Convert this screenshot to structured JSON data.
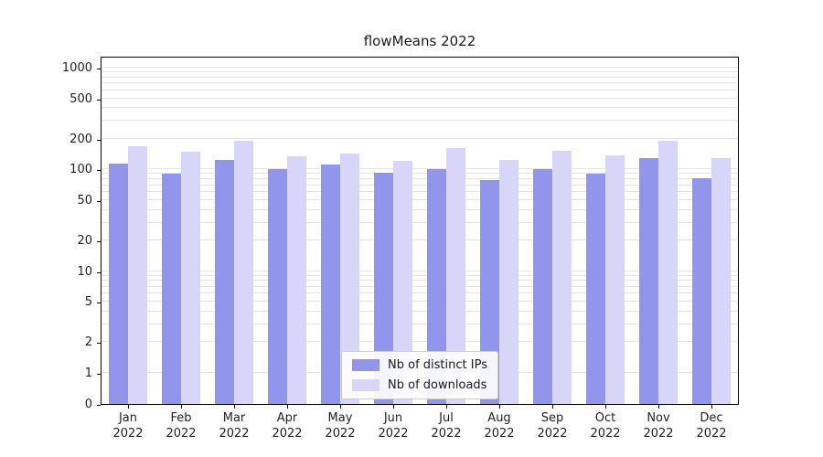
{
  "chart_data": {
    "type": "bar",
    "title": "flowMeans 2022",
    "yscale": "symlog",
    "grid": true,
    "legend_position": "lower center",
    "ylim": [
      0,
      1000
    ],
    "yticks": [
      0,
      1,
      2,
      5,
      10,
      20,
      50,
      100,
      200,
      500,
      1000
    ],
    "categories": [
      "Jan 2022",
      "Feb 2022",
      "Mar 2022",
      "Apr 2022",
      "May 2022",
      "Jun 2022",
      "Jul 2022",
      "Aug 2022",
      "Sep 2022",
      "Oct 2022",
      "Nov 2022",
      "Dec 2022"
    ],
    "series": [
      {
        "name": "Nb of distinct IPs",
        "color": "#9295ec",
        "values": [
          115,
          90,
          125,
          100,
          112,
          93,
          100,
          78,
          100,
          90,
          130,
          82
        ]
      },
      {
        "name": "Nb of downloads",
        "color": "#d7d6f9",
        "values": [
          170,
          150,
          190,
          135,
          143,
          122,
          163,
          123,
          152,
          136,
          193,
          128
        ]
      }
    ]
  }
}
